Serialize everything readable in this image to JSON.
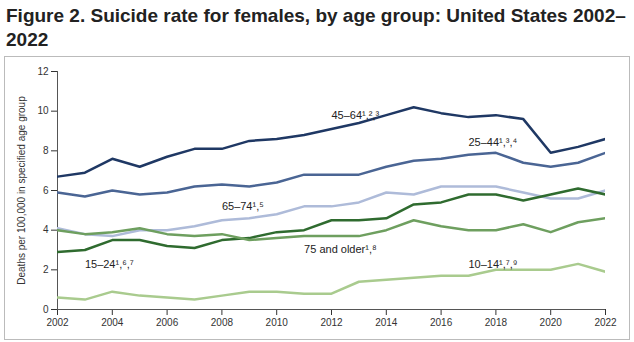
{
  "chart_data": {
    "type": "line",
    "title": "Figure 2. Suicide rate for females, by age group: United States 2002–2022",
    "y_label": "Deaths per 100,000 in specified age group",
    "x": [
      2002,
      2003,
      2004,
      2005,
      2006,
      2007,
      2008,
      2009,
      2010,
      2011,
      2012,
      2013,
      2014,
      2015,
      2016,
      2017,
      2018,
      2019,
      2020,
      2021,
      2022
    ],
    "xlim": [
      2002,
      2022
    ],
    "xticks": [
      2002,
      2004,
      2006,
      2008,
      2010,
      2012,
      2014,
      2016,
      2018,
      2020,
      2022
    ],
    "ylim": [
      0,
      12
    ],
    "yticks": [
      0,
      2,
      4,
      6,
      8,
      10,
      12
    ],
    "grid": false,
    "series": [
      {
        "name": "45–64¹,²,³",
        "color": "#1f3864",
        "values": [
          6.7,
          6.9,
          7.6,
          7.2,
          7.7,
          8.1,
          8.1,
          8.5,
          8.6,
          8.8,
          9.1,
          9.4,
          9.8,
          10.2,
          9.9,
          9.7,
          9.8,
          9.6,
          7.9,
          8.2,
          8.6
        ]
      },
      {
        "name": "25–44¹,³,⁴",
        "color": "#4a6594",
        "values": [
          5.9,
          5.7,
          6.0,
          5.8,
          5.9,
          6.2,
          6.3,
          6.2,
          6.4,
          6.8,
          6.8,
          6.8,
          7.2,
          7.5,
          7.6,
          7.8,
          7.9,
          7.4,
          7.2,
          7.4,
          7.9
        ]
      },
      {
        "name": "65–74¹,⁵",
        "color": "#aebbd9",
        "values": [
          4.1,
          3.8,
          3.7,
          4.0,
          4.0,
          4.2,
          4.5,
          4.6,
          4.8,
          5.2,
          5.2,
          5.4,
          5.9,
          5.8,
          6.2,
          6.2,
          6.2,
          5.9,
          5.6,
          5.6,
          6.0
        ]
      },
      {
        "name": "15–24¹,⁶,⁷",
        "color": "#2f6b2f",
        "values": [
          2.9,
          3.0,
          3.5,
          3.5,
          3.2,
          3.1,
          3.5,
          3.6,
          3.9,
          4.0,
          4.5,
          4.5,
          4.6,
          5.3,
          5.4,
          5.8,
          5.8,
          5.5,
          5.8,
          6.1,
          5.8
        ]
      },
      {
        "name": "75 and older¹,⁸",
        "color": "#6e9f5f",
        "values": [
          4.0,
          3.8,
          3.9,
          4.1,
          3.8,
          3.7,
          3.8,
          3.5,
          3.6,
          3.7,
          3.7,
          3.7,
          4.0,
          4.5,
          4.2,
          4.0,
          4.0,
          4.3,
          3.9,
          4.4,
          4.6
        ]
      },
      {
        "name": "10–14¹,⁷,⁹",
        "color": "#a9cb8e",
        "values": [
          0.6,
          0.5,
          0.9,
          0.7,
          0.6,
          0.5,
          0.7,
          0.9,
          0.9,
          0.8,
          0.8,
          1.4,
          1.5,
          1.6,
          1.7,
          1.7,
          2.0,
          2.0,
          2.0,
          2.3,
          1.9
        ]
      }
    ]
  }
}
